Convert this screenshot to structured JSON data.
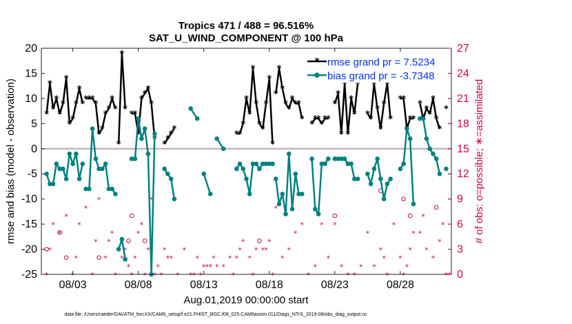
{
  "chart_data": {
    "type": "line",
    "title": "Tropics 471 / 488 = 96.516%",
    "subtitle": "SAT_U_WIND_COMPONENT @ 100 hPa",
    "xlabel": "Aug.01,2019 00:00:00 start",
    "ylabel": "rmse and bias (model - observation)",
    "ylabel_right": "# of obs: o=possible; ∗=assimilated",
    "footnote": "data file: /Users/raeder/DAI/ATM_forcXX/CAM6_setup/f.e21.FHIST_BGC.f09_025.CAM6assim.011/Diags_NTrS_2019-08/obs_diag_output.nc",
    "xlim": [
      0.6,
      31.9
    ],
    "ylim": [
      -25,
      20
    ],
    "ylim_right": [
      0,
      27
    ],
    "x_ticks": [
      3,
      8,
      13,
      18,
      23,
      28
    ],
    "x_tick_labels": [
      "08/03",
      "08/08",
      "08/13",
      "08/18",
      "08/23",
      "08/28"
    ],
    "y_ticks": [
      20,
      15,
      10,
      5,
      0,
      -5,
      -10,
      -15,
      -20,
      -25
    ],
    "y_tick_labels": [
      "20",
      "15",
      "10",
      "5",
      "0",
      "-5",
      "-10",
      "-15",
      "-20",
      "-25"
    ],
    "y_ticks_right": [
      27,
      24,
      21,
      18,
      15,
      12,
      9,
      6,
      3,
      0
    ],
    "y_tick_labels_right": [
      "27",
      "24",
      "21",
      "18",
      "15",
      "12",
      "9",
      "6",
      "3",
      "0"
    ],
    "zero_line": 0,
    "legend": [
      {
        "name": "rmse grand pr = 7.5234",
        "color": "#000000",
        "marker": "asterisk"
      },
      {
        "name": "bias grand pr = -3.7348",
        "color": "#008080",
        "marker": "circle"
      }
    ],
    "colors": {
      "rmse": "#000000",
      "bias": "#008080",
      "obs": "#cc0055",
      "zero": "#b8a3b2",
      "legend_text": "#0033dd"
    },
    "series": [
      {
        "name": "rmse",
        "segments": [
          {
            "x": [
              1.0,
              1.25,
              1.5,
              1.75,
              2.0,
              2.25,
              2.5,
              2.75,
              3.0,
              3.25,
              3.5,
              3.75
            ],
            "y": [
              7,
              13,
              8,
              10,
              7,
              9,
              14,
              5,
              6,
              9,
              12,
              9
            ]
          },
          {
            "x": [
              4.0,
              4.25,
              4.5,
              4.75,
              5.0,
              5.25,
              5.5,
              5.75,
              6.0,
              6.25
            ],
            "y": [
              10,
              10,
              10,
              9,
              3,
              4,
              7,
              8,
              10,
              8
            ]
          },
          {
            "x": [
              6.5,
              6.75,
              7.0
            ],
            "y": [
              1,
              19,
              8
            ]
          },
          {
            "x": [
              7.5,
              7.75,
              8.0,
              8.25,
              8.5,
              8.75,
              9.0,
              9.25
            ],
            "y": [
              7,
              7,
              3,
              10,
              11,
              12,
              9,
              2
            ]
          },
          {
            "x": [
              10.0,
              10.25,
              10.5,
              10.75
            ],
            "y": [
              1,
              2,
              3,
              4
            ]
          },
          {
            "x": [
              15.5,
              15.75,
              16.0,
              16.25,
              16.5,
              16.75,
              17.0,
              17.25,
              17.5,
              17.75,
              18.0,
              18.25
            ],
            "y": [
              3,
              3,
              5,
              10,
              7,
              16,
              9,
              5,
              4,
              9,
              14,
              1
            ]
          },
          {
            "x": [
              18.5,
              18.75,
              19.0,
              19.25,
              19.5,
              19.75,
              20.0,
              20.25,
              20.5
            ],
            "y": [
              11,
              16,
              12,
              9,
              8,
              10,
              9,
              9,
              6
            ]
          },
          {
            "x": [
              21.25,
              21.5,
              21.75,
              22.0,
              22.25,
              22.5
            ],
            "y": [
              5,
              6,
              6,
              5,
              6,
              6
            ]
          },
          {
            "x": [
              23.0,
              23.25,
              23.5,
              23.75,
              24.0,
              24.25,
              24.5,
              24.75
            ],
            "y": [
              9,
              11,
              3,
              13,
              3,
              10,
              7,
              13
            ]
          },
          {
            "x": [
              25.5,
              25.75,
              26.0,
              26.25,
              26.5,
              26.75,
              27.0,
              27.25
            ],
            "y": [
              7,
              6,
              13,
              8,
              4,
              9,
              13,
              6
            ]
          },
          {
            "x": [
              28.0,
              28.25,
              28.5,
              28.75,
              29.0
            ],
            "y": [
              10,
              10,
              4,
              6,
              6
            ]
          },
          {
            "x": [
              29.5,
              29.75,
              30.0,
              30.25,
              30.5,
              30.75,
              31.0
            ],
            "y": [
              9,
              6,
              8,
              7,
              10,
              6,
              4
            ]
          },
          {
            "x": [
              31.5
            ],
            "y": [
              8
            ]
          }
        ]
      },
      {
        "name": "bias",
        "segments": [
          {
            "x": [
              1.0,
              1.25,
              1.5,
              1.75,
              2.0,
              2.25,
              2.5,
              2.75,
              3.0,
              3.25,
              3.5,
              3.75
            ],
            "y": [
              -5,
              -7,
              -7,
              -3,
              -4,
              -4,
              -6,
              -1,
              -3,
              -1,
              -6,
              -3
            ]
          },
          {
            "x": [
              4.0,
              4.25,
              4.5,
              4.75,
              5.0,
              5.25,
              5.5,
              5.75,
              6.0,
              6.25
            ],
            "y": [
              -8,
              -8,
              4,
              -2,
              -4,
              -4,
              -3,
              -8,
              -8,
              -9
            ]
          },
          {
            "x": [
              6.5,
              6.75,
              7.0
            ],
            "y": [
              -20,
              -18,
              -22
            ]
          },
          {
            "x": [
              7.5,
              7.75,
              8.0,
              8.25,
              8.5,
              8.75,
              9.0,
              9.25
            ],
            "y": [
              -2,
              -2,
              6,
              2,
              4,
              -1,
              -25,
              3
            ]
          },
          {
            "x": [
              10.0,
              10.25,
              10.5,
              10.75
            ],
            "y": [
              -4,
              -5,
              -6,
              -10
            ]
          },
          {
            "x": [
              12.0,
              12.5
            ],
            "y": [
              8,
              6
            ]
          },
          {
            "x": [
              13.0,
              13.5
            ],
            "y": [
              -5,
              -9
            ]
          },
          {
            "x": [
              14.0,
              14.5
            ],
            "y": [
              2,
              0
            ]
          },
          {
            "x": [
              15.5,
              15.75,
              16.0,
              16.25,
              16.5,
              16.75,
              17.0,
              17.25,
              17.5,
              17.75,
              18.0,
              18.25
            ],
            "y": [
              -4,
              -3,
              -4,
              -6,
              -9,
              -3,
              -3,
              -4,
              -3,
              -3,
              -3,
              -3
            ]
          },
          {
            "x": [
              18.5,
              18.75,
              19.0,
              19.25,
              19.5,
              19.75,
              20.0,
              20.25,
              20.5
            ],
            "y": [
              -6,
              -11,
              -9,
              -13,
              -1,
              -12,
              -5,
              -9,
              -9
            ]
          },
          {
            "x": [
              21.25,
              21.5,
              21.75,
              22.0,
              22.25,
              22.5
            ],
            "y": [
              -2,
              -12,
              -13,
              -3,
              -3,
              -2
            ]
          },
          {
            "x": [
              23.0,
              23.25,
              23.5,
              23.75,
              24.0,
              24.25,
              24.5,
              24.75
            ],
            "y": [
              -2,
              -2,
              -2,
              -2,
              -3,
              -3,
              -6,
              -6
            ]
          },
          {
            "x": [
              25.5,
              25.75,
              26.0,
              26.25,
              26.5,
              26.75,
              27.0,
              27.25
            ],
            "y": [
              -5,
              -7,
              -4,
              -2,
              -6,
              -10,
              -7,
              -6
            ]
          },
          {
            "x": [
              28.0,
              28.25,
              28.5,
              28.75,
              29.0
            ],
            "y": [
              -4,
              -3,
              4,
              2,
              -11
            ]
          },
          {
            "x": [
              29.5,
              29.75,
              30.0,
              30.25,
              30.5,
              30.75,
              31.0
            ],
            "y": [
              6,
              6,
              2,
              0,
              -1,
              -2,
              -5
            ]
          },
          {
            "x": [
              31.5
            ],
            "y": [
              -4
            ]
          }
        ]
      }
    ],
    "obs_assimilated": {
      "x": [
        1.0,
        1.25,
        1.5,
        2.0,
        2.5,
        3.0,
        3.25,
        3.5,
        4.0,
        4.5,
        4.75,
        5.0,
        5.5,
        5.75,
        6.0,
        6.25,
        6.5,
        6.75,
        7.0,
        7.25,
        7.5,
        7.75,
        8.0,
        8.25,
        8.5,
        8.75,
        9.0,
        9.25,
        9.5,
        9.75,
        10.0,
        10.25,
        10.5,
        11.0,
        11.5,
        12.0,
        12.25,
        12.5,
        12.75,
        13.0,
        13.25,
        13.5,
        13.75,
        14.0,
        14.5,
        15.0,
        15.25,
        15.5,
        15.75,
        16.0,
        16.5,
        16.75,
        17.0,
        17.5,
        17.75,
        18.0,
        18.25,
        18.5,
        19.0,
        19.5,
        20.0,
        20.5,
        21.0,
        21.5,
        22.0,
        22.5,
        23.0,
        23.5,
        24.0,
        24.5,
        25.0,
        25.5,
        26.0,
        26.5,
        26.75,
        27.0,
        27.5,
        28.0,
        28.25,
        28.5,
        28.75,
        29.0,
        29.5,
        29.75,
        30.0,
        30.5,
        31.0,
        31.25,
        31.5,
        31.75
      ],
      "y": [
        0,
        3,
        6,
        5,
        7,
        0,
        2,
        6,
        8,
        0,
        4,
        9,
        2,
        4,
        5,
        0,
        3,
        2,
        3,
        1,
        0,
        2,
        5,
        6,
        0,
        3,
        9,
        0,
        1,
        0,
        3,
        2,
        2,
        0,
        3,
        0,
        0,
        2,
        0,
        1,
        1,
        1,
        2,
        1,
        1,
        2,
        0,
        2,
        3,
        4,
        2,
        0,
        3,
        3,
        3,
        4,
        0,
        8,
        2,
        3,
        5,
        6,
        0,
        1,
        6,
        2,
        6,
        1,
        0,
        0,
        1,
        5,
        1,
        3,
        2,
        0,
        6,
        2,
        0,
        1,
        3,
        5,
        5,
        7,
        3,
        2,
        4,
        6,
        0,
        0
      ]
    },
    "obs_possible": [
      {
        "x": 1.0,
        "y": 3
      },
      {
        "x": 2.0,
        "y": 5
      },
      {
        "x": 2.5,
        "y": 2
      },
      {
        "x": 5.0,
        "y": 2
      },
      {
        "x": 7.25,
        "y": 4
      },
      {
        "x": 7.5,
        "y": 7
      },
      {
        "x": 8.5,
        "y": 4
      },
      {
        "x": 17.25,
        "y": 4
      },
      {
        "x": 23.0,
        "y": 7
      },
      {
        "x": 26.5,
        "y": 10
      },
      {
        "x": 28.25,
        "y": 9
      },
      {
        "x": 28.75,
        "y": 7
      },
      {
        "x": 30.75,
        "y": 8
      }
    ]
  }
}
